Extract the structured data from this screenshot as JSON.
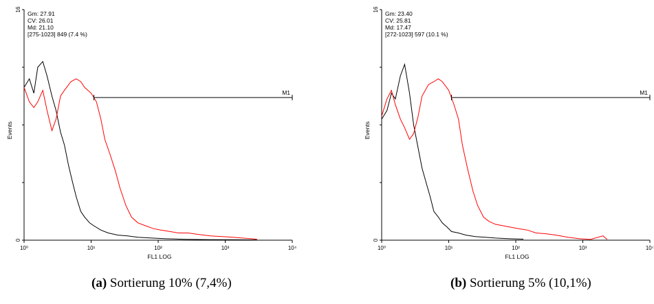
{
  "chart_data": [
    {
      "type": "line",
      "xlabel": "FL1 LOG",
      "ylabel": "Events",
      "x_scale": "log",
      "xlim": [
        1,
        10000
      ],
      "ylim": [
        0,
        16
      ],
      "x_tick_labels": [
        "10⁰",
        "10¹",
        "10²",
        "10³",
        "10⁴"
      ],
      "y_tick_labels": [
        "0",
        "16"
      ],
      "stats": [
        "Gm:  27.91",
        "CV:  26.01",
        "Md:  21.10",
        "[275-1023] 849    (7.4 %)"
      ],
      "marker": {
        "label": "M1",
        "x_start": 11,
        "x_end": 10000,
        "y": 9.9
      },
      "series": [
        {
          "color": "#000000",
          "points": [
            [
              1,
              10.6
            ],
            [
              1.2,
              11.2
            ],
            [
              1.4,
              10.2
            ],
            [
              1.6,
              12.0
            ],
            [
              1.9,
              12.4
            ],
            [
              2.2,
              11.4
            ],
            [
              2.6,
              10.0
            ],
            [
              3.0,
              9.0
            ],
            [
              3.5,
              7.5
            ],
            [
              4.0,
              6.6
            ],
            [
              4.6,
              5.2
            ],
            [
              5.3,
              4.0
            ],
            [
              6.0,
              3.0
            ],
            [
              7.0,
              2.0
            ],
            [
              8.0,
              1.6
            ],
            [
              9.5,
              1.2
            ],
            [
              11,
              1.0
            ],
            [
              14,
              0.7
            ],
            [
              18,
              0.5
            ],
            [
              25,
              0.35
            ],
            [
              35,
              0.3
            ],
            [
              50,
              0.2
            ],
            [
              80,
              0.15
            ],
            [
              130,
              0.1
            ],
            [
              250,
              0.06
            ],
            [
              600,
              0.04
            ],
            [
              1500,
              0.03
            ],
            [
              3000,
              0.02
            ]
          ]
        },
        {
          "color": "#ff0000",
          "points": [
            [
              1,
              10.6
            ],
            [
              1.2,
              9.6
            ],
            [
              1.4,
              9.2
            ],
            [
              1.6,
              9.6
            ],
            [
              1.9,
              10.4
            ],
            [
              2.2,
              9.0
            ],
            [
              2.6,
              7.6
            ],
            [
              3.0,
              8.4
            ],
            [
              3.5,
              10.0
            ],
            [
              4.0,
              10.4
            ],
            [
              5.0,
              11.0
            ],
            [
              6.0,
              11.2
            ],
            [
              7.0,
              11.0
            ],
            [
              8.0,
              10.6
            ],
            [
              10.0,
              10.2
            ],
            [
              12.0,
              9.6
            ],
            [
              14.0,
              8.4
            ],
            [
              16.0,
              7.0
            ],
            [
              19.0,
              6.0
            ],
            [
              23.0,
              4.8
            ],
            [
              27.0,
              3.6
            ],
            [
              33.0,
              2.4
            ],
            [
              40.0,
              1.6
            ],
            [
              50.0,
              1.2
            ],
            [
              65.0,
              1.0
            ],
            [
              85.0,
              0.8
            ],
            [
              110,
              0.7
            ],
            [
              150,
              0.6
            ],
            [
              200,
              0.5
            ],
            [
              280,
              0.5
            ],
            [
              400,
              0.4
            ],
            [
              600,
              0.3
            ],
            [
              900,
              0.25
            ],
            [
              1300,
              0.2
            ],
            [
              1800,
              0.15
            ],
            [
              2500,
              0.1
            ],
            [
              3000,
              0.05
            ]
          ]
        }
      ]
    },
    {
      "type": "line",
      "xlabel": "FL1 LOG",
      "ylabel": "Events",
      "x_scale": "log",
      "xlim": [
        1,
        10000
      ],
      "ylim": [
        0,
        16
      ],
      "x_tick_labels": [
        "10⁰",
        "10¹",
        "10²",
        "10³",
        "10⁴"
      ],
      "y_tick_labels": [
        "0",
        "16"
      ],
      "stats": [
        "Gm:  23.40",
        "CV:  25.81",
        "Md:  17.47",
        "[272-1023] 597    (10.1 %)"
      ],
      "marker": {
        "label": "M1",
        "x_start": 11,
        "x_end": 10000,
        "y": 9.9
      },
      "series": [
        {
          "color": "#000000",
          "points": [
            [
              1,
              8.4
            ],
            [
              1.2,
              9.0
            ],
            [
              1.4,
              10.2
            ],
            [
              1.6,
              9.8
            ],
            [
              1.9,
              11.4
            ],
            [
              2.2,
              12.2
            ],
            [
              2.6,
              10.2
            ],
            [
              3.0,
              8.0
            ],
            [
              3.5,
              6.4
            ],
            [
              4.0,
              5.0
            ],
            [
              4.6,
              4.0
            ],
            [
              5.3,
              3.0
            ],
            [
              6.0,
              2.0
            ],
            [
              7.0,
              1.6
            ],
            [
              8.0,
              1.2
            ],
            [
              9.5,
              0.9
            ],
            [
              11,
              0.6
            ],
            [
              14,
              0.5
            ],
            [
              18,
              0.35
            ],
            [
              25,
              0.25
            ],
            [
              35,
              0.2
            ],
            [
              50,
              0.15
            ],
            [
              80,
              0.1
            ],
            [
              130,
              0.07
            ]
          ]
        },
        {
          "color": "#ff0000",
          "points": [
            [
              1,
              8.6
            ],
            [
              1.2,
              9.8
            ],
            [
              1.4,
              10.4
            ],
            [
              1.6,
              9.4
            ],
            [
              1.9,
              8.4
            ],
            [
              2.2,
              7.8
            ],
            [
              2.6,
              7.0
            ],
            [
              3.0,
              7.4
            ],
            [
              3.5,
              8.6
            ],
            [
              4.0,
              10.0
            ],
            [
              5.0,
              10.8
            ],
            [
              6.0,
              11.0
            ],
            [
              7.0,
              11.2
            ],
            [
              8.0,
              11.0
            ],
            [
              10.0,
              10.4
            ],
            [
              12.0,
              9.4
            ],
            [
              14.0,
              8.4
            ],
            [
              16.0,
              6.6
            ],
            [
              19.0,
              5.0
            ],
            [
              23.0,
              3.4
            ],
            [
              27.0,
              2.4
            ],
            [
              33.0,
              1.6
            ],
            [
              40.0,
              1.3
            ],
            [
              50.0,
              1.1
            ],
            [
              65.0,
              1.0
            ],
            [
              85.0,
              0.9
            ],
            [
              110,
              0.8
            ],
            [
              150,
              0.7
            ],
            [
              200,
              0.5
            ],
            [
              280,
              0.45
            ],
            [
              400,
              0.35
            ],
            [
              600,
              0.2
            ],
            [
              900,
              0.1
            ],
            [
              1300,
              0.05
            ],
            [
              2000,
              0.3
            ],
            [
              2300,
              0.05
            ]
          ]
        }
      ]
    }
  ],
  "captions": [
    {
      "letter": "(a)",
      "text": " Sortierung 10% (7,4%)"
    },
    {
      "letter": "(b)",
      "text": " Sortierung 5% (10,1%)"
    }
  ]
}
